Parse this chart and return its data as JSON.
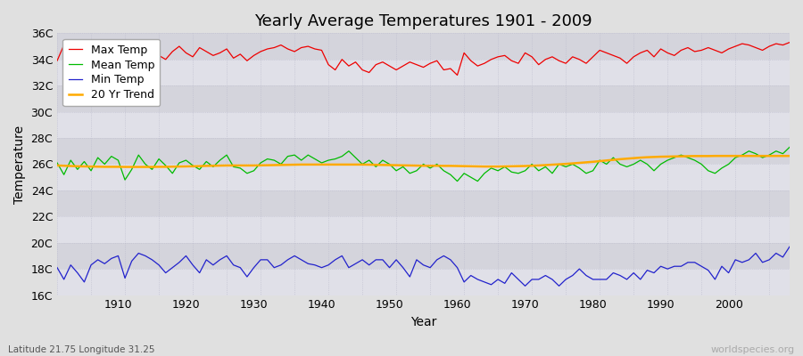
{
  "title": "Yearly Average Temperatures 1901 - 2009",
  "xlabel": "Year",
  "ylabel": "Temperature",
  "lat_lon_label": "Latitude 21.75 Longitude 31.25",
  "watermark": "worldspecies.org",
  "years": [
    1901,
    1902,
    1903,
    1904,
    1905,
    1906,
    1907,
    1908,
    1909,
    1910,
    1911,
    1912,
    1913,
    1914,
    1915,
    1916,
    1917,
    1918,
    1919,
    1920,
    1921,
    1922,
    1923,
    1924,
    1925,
    1926,
    1927,
    1928,
    1929,
    1930,
    1931,
    1932,
    1933,
    1934,
    1935,
    1936,
    1937,
    1938,
    1939,
    1940,
    1941,
    1942,
    1943,
    1944,
    1945,
    1946,
    1947,
    1948,
    1949,
    1950,
    1951,
    1952,
    1953,
    1954,
    1955,
    1956,
    1957,
    1958,
    1959,
    1960,
    1961,
    1962,
    1963,
    1964,
    1965,
    1966,
    1967,
    1968,
    1969,
    1970,
    1971,
    1972,
    1973,
    1974,
    1975,
    1976,
    1977,
    1978,
    1979,
    1980,
    1981,
    1982,
    1983,
    1984,
    1985,
    1986,
    1987,
    1988,
    1989,
    1990,
    1991,
    1992,
    1993,
    1994,
    1995,
    1996,
    1997,
    1998,
    1999,
    2000,
    2001,
    2002,
    2003,
    2004,
    2005,
    2006,
    2007,
    2008,
    2009
  ],
  "max_temp": [
    33.9,
    35.1,
    34.8,
    34.3,
    35.3,
    34.7,
    34.1,
    34.5,
    33.8,
    35.0,
    34.5,
    34.0,
    34.6,
    34.2,
    33.8,
    34.3,
    34.0,
    34.6,
    35.0,
    34.5,
    34.2,
    34.9,
    34.6,
    34.3,
    34.5,
    34.8,
    34.1,
    34.4,
    33.9,
    34.3,
    34.6,
    34.8,
    34.9,
    35.1,
    34.8,
    34.6,
    34.9,
    35.0,
    34.8,
    34.7,
    33.6,
    33.2,
    34.0,
    33.5,
    33.8,
    33.2,
    33.0,
    33.6,
    33.8,
    33.5,
    33.2,
    33.5,
    33.8,
    33.6,
    33.4,
    33.7,
    33.9,
    33.2,
    33.3,
    32.8,
    34.5,
    33.9,
    33.5,
    33.7,
    34.0,
    34.2,
    34.3,
    33.9,
    33.7,
    34.5,
    34.2,
    33.6,
    34.0,
    34.2,
    33.9,
    33.7,
    34.2,
    34.0,
    33.7,
    34.2,
    34.7,
    34.5,
    34.3,
    34.1,
    33.7,
    34.2,
    34.5,
    34.7,
    34.2,
    34.8,
    34.5,
    34.3,
    34.7,
    34.9,
    34.6,
    34.7,
    34.9,
    34.7,
    34.5,
    34.8,
    35.0,
    35.2,
    35.1,
    34.9,
    34.7,
    35.0,
    35.2,
    35.1,
    35.3
  ],
  "mean_temp": [
    26.1,
    25.2,
    26.3,
    25.6,
    26.2,
    25.5,
    26.5,
    26.0,
    26.6,
    26.3,
    24.8,
    25.6,
    26.7,
    26.0,
    25.6,
    26.4,
    25.9,
    25.3,
    26.1,
    26.3,
    25.9,
    25.6,
    26.2,
    25.8,
    26.3,
    26.7,
    25.8,
    25.7,
    25.3,
    25.5,
    26.1,
    26.4,
    26.3,
    26.0,
    26.6,
    26.7,
    26.3,
    26.7,
    26.4,
    26.1,
    26.3,
    26.4,
    26.6,
    27.0,
    26.5,
    26.0,
    26.3,
    25.8,
    26.3,
    26.0,
    25.5,
    25.8,
    25.3,
    25.5,
    26.0,
    25.7,
    26.0,
    25.5,
    25.2,
    24.7,
    25.3,
    25.0,
    24.7,
    25.3,
    25.7,
    25.5,
    25.8,
    25.4,
    25.3,
    25.5,
    26.0,
    25.5,
    25.8,
    25.3,
    26.0,
    25.8,
    26.0,
    25.7,
    25.3,
    25.5,
    26.3,
    26.0,
    26.5,
    26.0,
    25.8,
    26.0,
    26.3,
    26.0,
    25.5,
    26.0,
    26.3,
    26.5,
    26.7,
    26.5,
    26.3,
    26.0,
    25.5,
    25.3,
    25.7,
    26.0,
    26.5,
    26.7,
    27.0,
    26.8,
    26.5,
    26.7,
    27.0,
    26.8,
    27.3
  ],
  "min_temp": [
    18.1,
    17.2,
    18.3,
    17.7,
    17.0,
    18.3,
    18.7,
    18.4,
    18.8,
    19.0,
    17.3,
    18.6,
    19.2,
    19.0,
    18.7,
    18.3,
    17.7,
    18.1,
    18.5,
    19.0,
    18.3,
    17.7,
    18.7,
    18.3,
    18.7,
    19.0,
    18.3,
    18.1,
    17.4,
    18.1,
    18.7,
    18.7,
    18.1,
    18.3,
    18.7,
    19.0,
    18.7,
    18.4,
    18.3,
    18.1,
    18.3,
    18.7,
    19.0,
    18.1,
    18.4,
    18.7,
    18.3,
    18.7,
    18.7,
    18.1,
    18.7,
    18.1,
    17.4,
    18.7,
    18.3,
    18.1,
    18.7,
    19.0,
    18.7,
    18.1,
    17.0,
    17.5,
    17.2,
    17.0,
    16.8,
    17.2,
    16.9,
    17.7,
    17.2,
    16.7,
    17.2,
    17.2,
    17.5,
    17.2,
    16.7,
    17.2,
    17.5,
    18.0,
    17.5,
    17.2,
    17.2,
    17.2,
    17.7,
    17.5,
    17.2,
    17.7,
    17.2,
    17.9,
    17.7,
    18.2,
    18.0,
    18.2,
    18.2,
    18.5,
    18.5,
    18.2,
    17.9,
    17.2,
    18.2,
    17.7,
    18.7,
    18.5,
    18.7,
    19.2,
    18.5,
    18.7,
    19.2,
    18.9,
    19.7
  ],
  "trend_20yr": [
    25.9,
    25.88,
    25.86,
    25.84,
    25.83,
    25.82,
    25.81,
    25.8,
    25.8,
    25.8,
    25.79,
    25.79,
    25.79,
    25.79,
    25.79,
    25.8,
    25.8,
    25.81,
    25.82,
    25.83,
    25.84,
    25.85,
    25.87,
    25.88,
    25.89,
    25.9,
    25.9,
    25.9,
    25.9,
    25.9,
    25.91,
    25.92,
    25.93,
    25.94,
    25.95,
    25.96,
    25.97,
    25.97,
    25.97,
    25.97,
    25.97,
    25.97,
    25.97,
    25.97,
    25.97,
    25.97,
    25.96,
    25.95,
    25.94,
    25.93,
    25.92,
    25.91,
    25.9,
    25.89,
    25.88,
    25.88,
    25.88,
    25.87,
    25.87,
    25.86,
    25.85,
    25.84,
    25.83,
    25.82,
    25.82,
    25.82,
    25.83,
    25.84,
    25.85,
    25.86,
    25.88,
    25.9,
    25.93,
    25.96,
    25.99,
    26.02,
    26.06,
    26.1,
    26.14,
    26.18,
    26.23,
    26.28,
    26.33,
    26.38,
    26.42,
    26.46,
    26.5,
    26.53,
    26.55,
    26.57,
    26.58,
    26.59,
    26.6,
    26.61,
    26.62,
    26.62,
    26.62,
    26.63,
    26.63,
    26.63,
    26.63,
    26.63,
    26.63,
    26.63,
    26.63,
    26.63,
    26.63,
    26.63,
    26.63
  ],
  "ylim": [
    16,
    36
  ],
  "yticks": [
    16,
    18,
    20,
    22,
    24,
    26,
    28,
    30,
    32,
    34,
    36
  ],
  "ytick_labels": [
    "16C",
    "18C",
    "20C",
    "22C",
    "24C",
    "26C",
    "28C",
    "30C",
    "32C",
    "34C",
    "36C"
  ],
  "xlim": [
    1901,
    2009
  ],
  "xticks": [
    1910,
    1920,
    1930,
    1940,
    1950,
    1960,
    1970,
    1980,
    1990,
    2000
  ],
  "max_color": "#ee0000",
  "mean_color": "#00bb00",
  "min_color": "#2222cc",
  "trend_color": "#ffaa00",
  "bg_color": "#e0e0e0",
  "plot_bg_color": "#e8e8e8",
  "stripe_color": "#d8d8d8",
  "grid_color": "#cccccc",
  "title_fontsize": 13,
  "axis_label_fontsize": 10,
  "tick_fontsize": 9,
  "legend_fontsize": 9
}
